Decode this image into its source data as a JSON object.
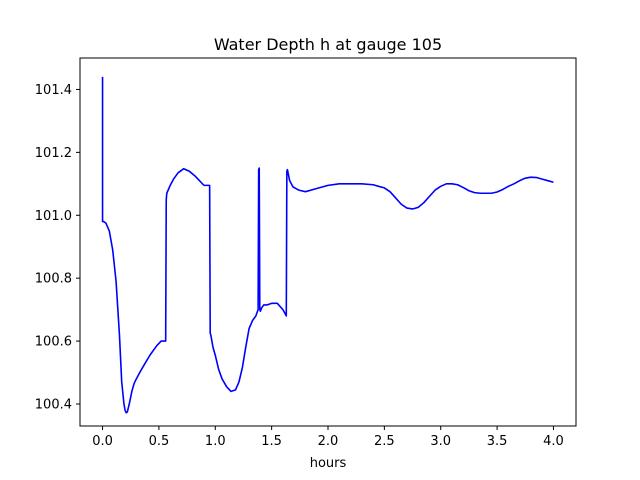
{
  "chart_data": {
    "type": "line",
    "title": "Water Depth h at gauge 105",
    "xlabel": "hours",
    "ylabel": "",
    "xlim": [
      -0.2,
      4.2
    ],
    "ylim": [
      100.33,
      101.5
    ],
    "xticks": [
      0.0,
      0.5,
      1.0,
      1.5,
      2.0,
      2.5,
      3.0,
      3.5,
      4.0
    ],
    "xtick_labels": [
      "0.0",
      "0.5",
      "1.0",
      "1.5",
      "2.0",
      "2.5",
      "3.0",
      "3.5",
      "4.0"
    ],
    "yticks": [
      100.4,
      100.6,
      100.8,
      101.0,
      101.2,
      101.4
    ],
    "ytick_labels": [
      "100.4",
      "100.6",
      "100.8",
      "101.0",
      "101.2",
      "101.4"
    ],
    "grid": false,
    "series": [
      {
        "color": "#0000ff",
        "x": [
          0.0,
          0.0,
          0.0,
          0.01,
          0.03,
          0.06,
          0.09,
          0.12,
          0.15,
          0.17,
          0.19,
          0.2,
          0.21,
          0.22,
          0.24,
          0.26,
          0.28,
          0.3,
          0.33,
          0.37,
          0.42,
          0.48,
          0.52,
          0.56,
          0.565,
          0.57,
          0.6,
          0.63,
          0.67,
          0.72,
          0.77,
          0.82,
          0.86,
          0.9,
          0.93,
          0.95,
          0.955,
          0.96,
          0.98,
          1.0,
          1.03,
          1.06,
          1.1,
          1.14,
          1.18,
          1.21,
          1.24,
          1.27,
          1.3,
          1.33,
          1.36,
          1.38,
          1.385,
          1.39,
          1.395,
          1.4,
          1.41,
          1.43,
          1.46,
          1.5,
          1.55,
          1.6,
          1.63,
          1.635,
          1.64,
          1.66,
          1.69,
          1.74,
          1.8,
          1.9,
          2.0,
          2.1,
          2.2,
          2.3,
          2.4,
          2.5,
          2.55,
          2.6,
          2.65,
          2.7,
          2.75,
          2.8,
          2.85,
          2.9,
          2.95,
          3.0,
          3.05,
          3.1,
          3.15,
          3.2,
          3.25,
          3.3,
          3.35,
          3.4,
          3.45,
          3.5,
          3.55,
          3.6,
          3.65,
          3.7,
          3.75,
          3.8,
          3.85,
          3.9,
          3.95,
          4.0
        ],
        "y": [
          101.44,
          101.44,
          100.98,
          100.98,
          100.975,
          100.95,
          100.89,
          100.79,
          100.62,
          100.47,
          100.4,
          100.38,
          100.372,
          100.375,
          100.405,
          100.44,
          100.465,
          100.48,
          100.5,
          100.525,
          100.555,
          100.585,
          100.6,
          100.6,
          101.05,
          101.07,
          101.095,
          101.115,
          101.135,
          101.148,
          101.14,
          101.125,
          101.11,
          101.095,
          101.095,
          101.095,
          100.625,
          100.62,
          100.58,
          100.555,
          100.51,
          100.48,
          100.455,
          100.44,
          100.445,
          100.47,
          100.515,
          100.58,
          100.64,
          100.665,
          100.68,
          100.7,
          101.145,
          101.15,
          100.7,
          100.695,
          100.705,
          100.715,
          100.715,
          100.72,
          100.72,
          100.7,
          100.68,
          101.14,
          101.145,
          101.11,
          101.09,
          101.08,
          101.075,
          101.085,
          101.095,
          101.1,
          101.1,
          101.1,
          101.097,
          101.087,
          101.075,
          101.055,
          101.035,
          101.023,
          101.02,
          101.025,
          101.04,
          101.06,
          101.08,
          101.092,
          101.1,
          101.1,
          101.097,
          101.088,
          101.078,
          101.072,
          101.07,
          101.07,
          101.07,
          101.074,
          101.082,
          101.092,
          101.1,
          101.11,
          101.118,
          101.121,
          101.12,
          101.115,
          101.11,
          101.105
        ]
      }
    ]
  }
}
